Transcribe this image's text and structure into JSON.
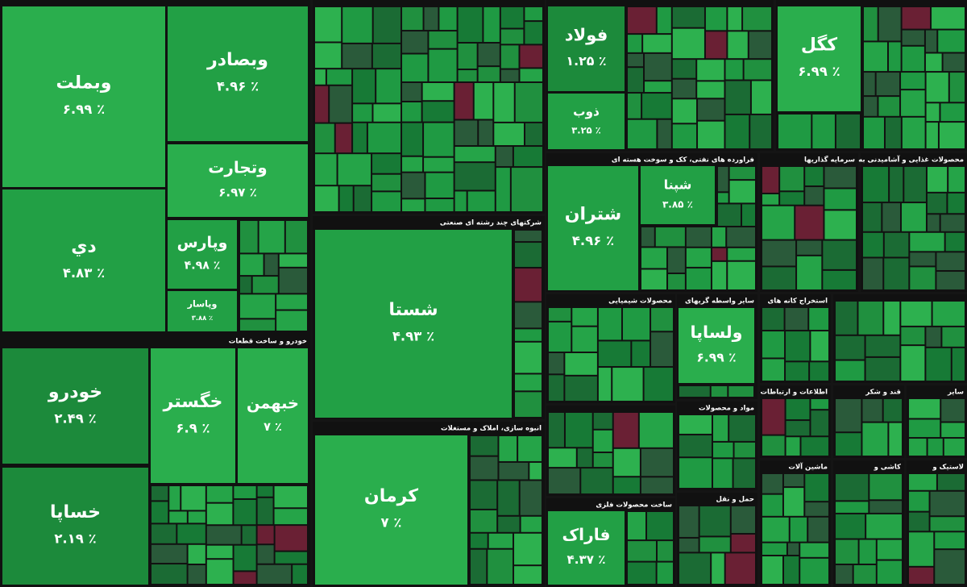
{
  "chart_data": {
    "type": "treemap",
    "groups": [
      {
        "stocks": [
          {
            "name": "وبملت",
            "value": 6.99,
            "value_label": "۶.۹۹ ٪"
          },
          {
            "name": "وبصادر",
            "value": 4.96,
            "value_label": "۴.۹۶ ٪"
          },
          {
            "name": "وتجارت",
            "value": 6.97,
            "value_label": "۶.۹۷ ٪"
          },
          {
            "name": "دي",
            "value": 4.83,
            "value_label": "۴.۸۳ ٪"
          },
          {
            "name": "وپارس",
            "value": 4.98,
            "value_label": "۴.۹۸ ٪"
          },
          {
            "name": "وپاسار",
            "value": 3.88,
            "value_label": "۳.۸۸ ٪"
          }
        ]
      },
      {
        "name": "خودرو و ساخت قطعات",
        "stocks": [
          {
            "name": "خودرو",
            "value": 2.49,
            "value_label": "۲.۴۹ ٪"
          },
          {
            "name": "خساپا",
            "value": 2.19,
            "value_label": "۲.۱۹ ٪"
          },
          {
            "name": "خگستر",
            "value": 6.9,
            "value_label": "۶.۹ ٪"
          },
          {
            "name": "خبهمن",
            "value": 7,
            "value_label": "۷ ٪"
          }
        ]
      },
      {
        "name": "شرکتهای چند رشته ای صنعتی",
        "stocks": [
          {
            "name": "شستا",
            "value": 4.93,
            "value_label": "۴.۹۳ ٪"
          }
        ]
      },
      {
        "name": "انبوه سازی، املاک و مستغلات",
        "stocks": [
          {
            "name": "کرمان",
            "value": 7,
            "value_label": "۷ ٪"
          }
        ]
      },
      {
        "stocks": [
          {
            "name": "فولاد",
            "value": 1.25,
            "value_label": "۱.۲۵ ٪"
          },
          {
            "name": "ذوب",
            "value": 3.25,
            "value_label": "۳.۲۵ ٪"
          }
        ]
      },
      {
        "stocks": [
          {
            "name": "کگل",
            "value": 6.99,
            "value_label": "۶.۹۹ ٪"
          }
        ]
      },
      {
        "name": "فراورده های نفتی، کک و سوخت هسته ای",
        "stocks": [
          {
            "name": "شتران",
            "value": 4.96,
            "value_label": "۴.۹۶ ٪"
          },
          {
            "name": "شپنا",
            "value": 3.85,
            "value_label": "۳.۸۵ ٪"
          }
        ]
      },
      {
        "name": "سایر واسطه گریهای",
        "stocks": [
          {
            "name": "ولساپا",
            "value": 6.99,
            "value_label": "۶.۹۹ ٪"
          }
        ]
      },
      {
        "name": "ساخت محصولات فلزی",
        "stocks": [
          {
            "name": "فاراک",
            "value": 4.37,
            "value_label": "۴.۳۷ ٪"
          }
        ]
      },
      {
        "name": "محصولات غذایی و آشامیدنی به",
        "stocks": []
      },
      {
        "name": "سرمایه گذاریها",
        "stocks": []
      },
      {
        "name": "محصولات شیمیایی",
        "stocks": []
      },
      {
        "name": "استخراج کانه های",
        "stocks": []
      },
      {
        "name": "مواد و محصولات",
        "stocks": []
      },
      {
        "name": "اطلاعات و ارتباطات",
        "stocks": []
      },
      {
        "name": "قند و شکر",
        "stocks": []
      },
      {
        "name": "حمل و نقل",
        "stocks": []
      },
      {
        "name": "سایر",
        "stocks": []
      },
      {
        "name": "ماشین آلات",
        "stocks": []
      },
      {
        "name": "کاشی و",
        "stocks": []
      },
      {
        "name": "لاستیک و",
        "stocks": []
      }
    ]
  }
}
